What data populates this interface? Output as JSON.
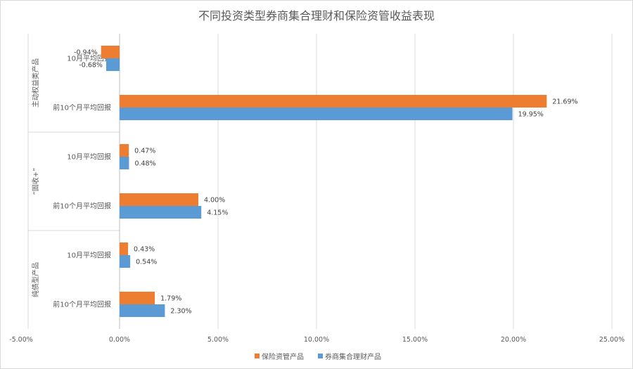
{
  "chart_data": {
    "type": "bar",
    "orientation": "horizontal",
    "title": "不同投资类型券商集合理财和保险资管收益表现",
    "groups": [
      {
        "name": "主动权益类产品",
        "categories": [
          "10月平均回报",
          "前10个月平均回报"
        ]
      },
      {
        "name": "“固收+”",
        "categories": [
          "10月平均回报",
          "前10个月平均回报"
        ]
      },
      {
        "name": "纯债型产品",
        "categories": [
          "10月平均回报",
          "前10个月平均回报"
        ]
      }
    ],
    "series": [
      {
        "name": "保险资管产品",
        "color": "#ED7D31",
        "values": [
          -0.94,
          21.69,
          0.47,
          4.0,
          0.43,
          1.79
        ]
      },
      {
        "name": "券商集合理财产品",
        "color": "#5B9BD5",
        "values": [
          -0.68,
          19.95,
          0.48,
          4.15,
          0.54,
          2.3
        ]
      }
    ],
    "xlim": [
      -5,
      25
    ],
    "xticks": [
      -5,
      0,
      5,
      10,
      15,
      20,
      25
    ],
    "x_tick_labels": [
      "-5.00%",
      "0.00%",
      "5.00%",
      "10.00%",
      "15.00%",
      "20.00%",
      "25.00%"
    ],
    "grid": true,
    "legend": "bottom"
  }
}
